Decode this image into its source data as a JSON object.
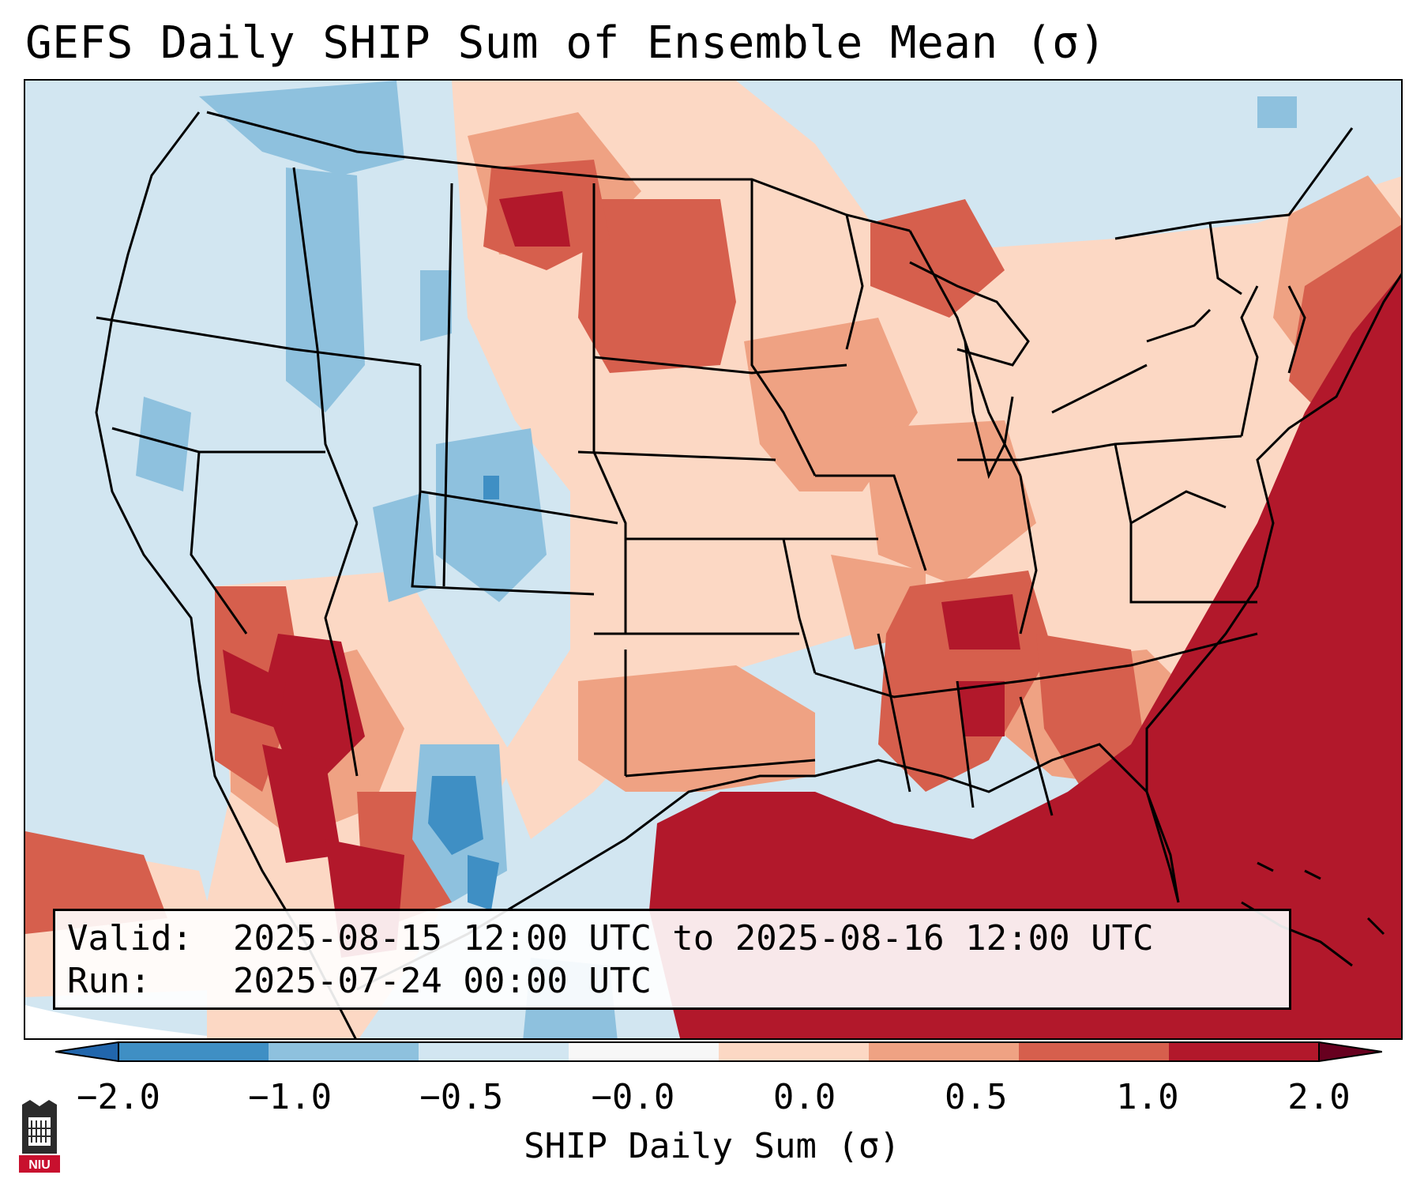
{
  "title": "GEFS Daily SHIP Sum of Ensemble Mean (σ)",
  "valid_label": "Valid:",
  "valid_value": "2025-08-15 12:00 UTC to 2025-08-16 12:00 UTC",
  "run_label": "Run:",
  "run_value": "2025-07-24 00:00 UTC",
  "colorbar": {
    "label": "SHIP Daily Sum (σ)",
    "ticks": [
      "−2.0",
      "−1.0",
      "−0.5",
      "−0.0",
      "0.0",
      "0.5",
      "1.0",
      "2.0"
    ],
    "bins": [
      "#3f8fc4",
      "#8ec1de",
      "#d2e6f1",
      "#f7f7f7",
      "#fcd8c4",
      "#efa283",
      "#d65f4d",
      "#b2182b"
    ],
    "under_color": "#2166ac",
    "over_color": "#67001f"
  },
  "colors": {
    "ocean_neutral": "#d2e6f1",
    "border": "#000000"
  },
  "logo": {
    "text": "NIU",
    "color": "#c8102e"
  }
}
